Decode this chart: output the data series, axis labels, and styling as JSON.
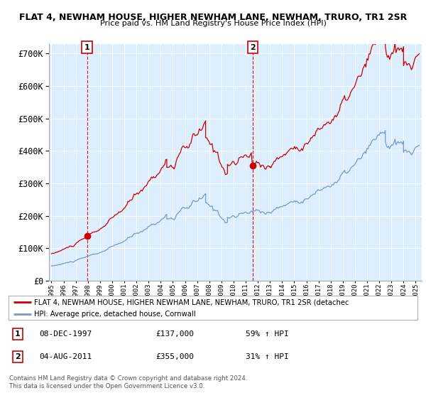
{
  "title1": "FLAT 4, NEWHAM HOUSE, HIGHER NEWHAM LANE, NEWHAM, TRURO, TR1 2SR",
  "title2": "Price paid vs. HM Land Registry's House Price Index (HPI)",
  "legend_line1": "FLAT 4, NEWHAM HOUSE, HIGHER NEWHAM LANE, NEWHAM, TRURO, TR1 2SR (detachec",
  "legend_line2": "HPI: Average price, detached house, Cornwall",
  "footer1": "Contains HM Land Registry data © Crown copyright and database right 2024.",
  "footer2": "This data is licensed under the Open Government Licence v3.0.",
  "annotation1": {
    "label": "1",
    "date": "08-DEC-1997",
    "price": "£137,000",
    "pct": "59% ↑ HPI"
  },
  "annotation2": {
    "label": "2",
    "date": "04-AUG-2011",
    "price": "£355,000",
    "pct": "31% ↑ HPI"
  },
  "vline1_x": 1997.94,
  "vline2_x": 2011.58,
  "dot1_x": 1997.94,
  "dot1_y": 137000,
  "dot2_x": 2011.58,
  "dot2_y": 355000,
  "red_color": "#cc0000",
  "blue_color": "#7799cc",
  "bg_plot_color": "#ddeeff",
  "background_color": "#ffffff",
  "grid_color": "#ffffff",
  "ylim": [
    0,
    730000
  ],
  "xlim_start": 1994.8,
  "xlim_end": 2025.5
}
